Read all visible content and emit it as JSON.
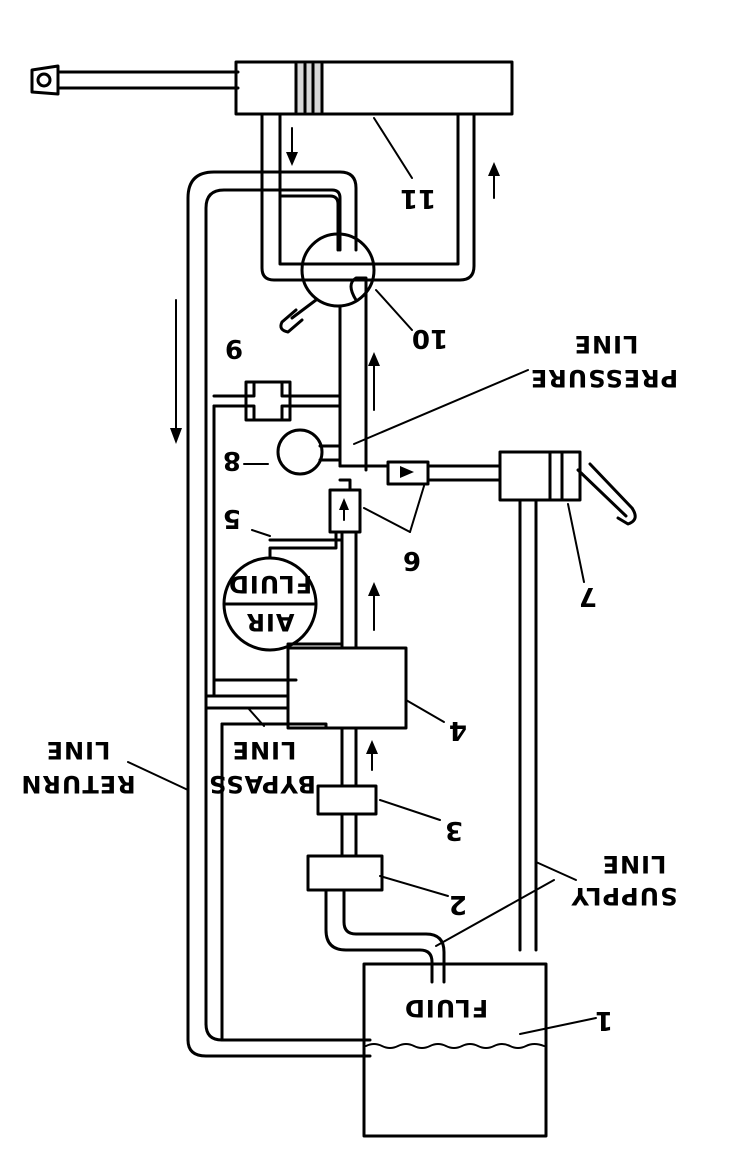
{
  "labels": {
    "n1": "1",
    "n2": "2",
    "n3": "3",
    "n4": "4",
    "n5": "5",
    "n6": "6",
    "n7": "7",
    "n8": "8",
    "n9": "9",
    "n10": "10",
    "n11": "11",
    "pressure_line_1": "PRESSURE",
    "pressure_line_2": "LINE",
    "return_line_1": "RETURN",
    "return_line_2": "LINE",
    "bypass_line_1": "BYPASS",
    "bypass_line_2": "LINE",
    "supply_line_1": "SUPPLY",
    "supply_line_2": "LINE",
    "accumulator_top": "FLUID",
    "accumulator_bottom": "AIR",
    "reservoir": "FLUID"
  }
}
